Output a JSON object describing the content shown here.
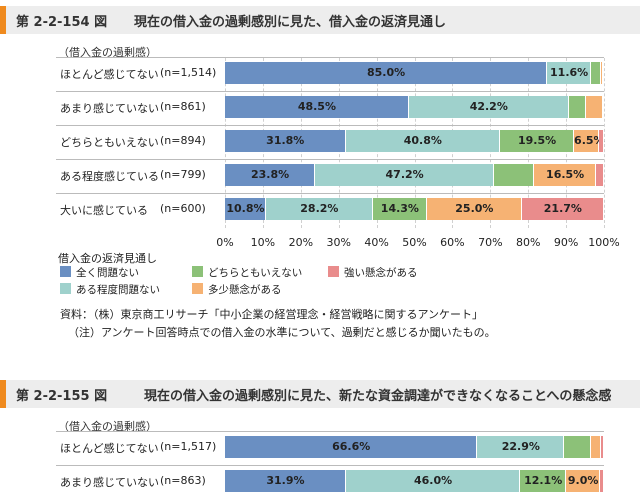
{
  "colors": {
    "全く問題ない": "#6a8fc2",
    "ある程度問題ない": "#9fd1cc",
    "どちらともいえない": "#8cc178",
    "多少懸念がある": "#f6b273",
    "強い懸念がある": "#e98c8c"
  },
  "fig1": {
    "number": "第 2-2-154 図",
    "title": "現在の借入金の過剰感別に見た、借入金の返済見通し",
    "axis_caption": "（借入金の過剰感）",
    "legend_title": "借入金の返済見通し",
    "legend": [
      "全く問題ない",
      "どちらともいえない",
      "強い懸念がある",
      "ある程度問題ない",
      "多少懸念がある"
    ],
    "source": "資料：（株）東京商工リサーチ「中小企業の経営理念・経営戦略に関するアンケート」",
    "note": "（注）アンケート回答時点での借入金の水準について、過剰だと感じるか聞いたもの。"
  },
  "fig2": {
    "number": "第 2-2-155 図",
    "title": "現在の借入金の過剰感別に見た、新たな資金調達ができなくなることへの懸念感",
    "axis_caption": "（借入金の過剰感）"
  },
  "chart_data": [
    {
      "type": "bar",
      "orientation": "horizontal",
      "stacked": "percent",
      "title": "現在の借入金の過剰感別に見た、借入金の返済見通し",
      "xlim": [
        0,
        100
      ],
      "xticks": [
        "0%",
        "10%",
        "20%",
        "30%",
        "40%",
        "50%",
        "60%",
        "70%",
        "80%",
        "90%",
        "100%"
      ],
      "categories": [
        "ほとんど感じてない",
        "あまり感じていない",
        "どちらともいえない",
        "ある程度感じている",
        "大いに感じている"
      ],
      "n_labels": [
        "(n=1,514)",
        "(n=861)",
        "(n=894)",
        "(n=799)",
        "(n=600)"
      ],
      "series": [
        {
          "name": "全く問題ない",
          "values": [
            85.0,
            48.5,
            31.8,
            23.8,
            10.8
          ]
        },
        {
          "name": "ある程度問題ない",
          "values": [
            11.6,
            42.2,
            40.8,
            47.2,
            28.2
          ]
        },
        {
          "name": "どちらともいえない",
          "values": [
            2.5,
            4.6,
            19.5,
            10.5,
            14.3
          ]
        },
        {
          "name": "多少懸念がある",
          "values": [
            0.6,
            4.4,
            6.5,
            16.5,
            25.0
          ]
        },
        {
          "name": "強い懸念がある",
          "values": [
            0.3,
            0.3,
            1.4,
            2.0,
            21.7
          ]
        }
      ],
      "shown_labels": [
        [
          "85.0%",
          "11.6%",
          "",
          "",
          ""
        ],
        [
          "48.5%",
          "42.2%",
          "",
          "",
          ""
        ],
        [
          "31.8%",
          "40.8%",
          "19.5%",
          "6.5%",
          ""
        ],
        [
          "23.8%",
          "47.2%",
          "",
          "16.5%",
          ""
        ],
        [
          "10.8%",
          "28.2%",
          "14.3%",
          "25.0%",
          "21.7%"
        ]
      ]
    },
    {
      "type": "bar",
      "orientation": "horizontal",
      "stacked": "percent",
      "title": "現在の借入金の過剰感別に見た、新たな資金調達ができなくなることへの懸念感",
      "xlim": [
        0,
        100
      ],
      "categories": [
        "ほとんど感じてない",
        "あまり感じていない"
      ],
      "n_labels": [
        "(n=1,517)",
        "(n=863)"
      ],
      "series": [
        {
          "values": [
            66.6,
            31.9
          ]
        },
        {
          "values": [
            22.9,
            46.0
          ]
        },
        {
          "values": [
            7.2,
            12.1
          ]
        },
        {
          "values": [
            2.5,
            9.0
          ]
        },
        {
          "values": [
            0.8,
            1.0
          ]
        }
      ],
      "shown_labels": [
        [
          "66.6%",
          "22.9%",
          "",
          "",
          ""
        ],
        [
          "31.9%",
          "46.0%",
          "12.1%",
          "9.0%",
          ""
        ]
      ]
    }
  ]
}
